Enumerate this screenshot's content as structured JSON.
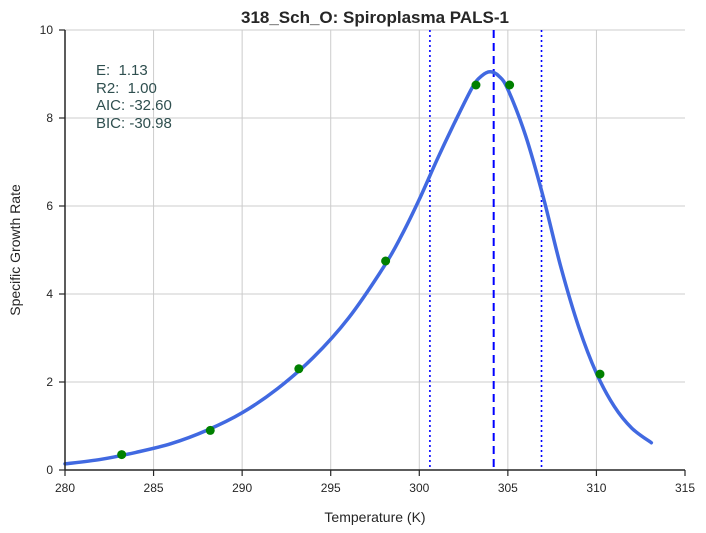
{
  "chart_data": {
    "type": "line",
    "title": "318_Sch_O: Spiroplasma PALS-1",
    "xlabel": "Temperature (K)",
    "ylabel": "Specific Growth Rate",
    "xlim": [
      280,
      315
    ],
    "ylim": [
      0,
      10
    ],
    "x_ticks": [
      280,
      285,
      290,
      295,
      300,
      305,
      310,
      315
    ],
    "y_ticks": [
      0,
      2,
      4,
      6,
      8,
      10
    ],
    "grid": true,
    "annotations": [
      "E:  1.13",
      "R2:  1.00",
      "AIC: -32.60",
      "BIC: -30.98"
    ],
    "colors": {
      "fit": "#4169e1",
      "points": "#008000",
      "peak_line": "#0000ff",
      "bound_lines": "#0000ff",
      "stats_text": "#2f4f4f"
    },
    "series": [
      {
        "style": "line",
        "x": [
          280,
          282,
          284,
          286,
          288,
          290,
          292,
          294,
          296,
          298,
          299,
          300,
          301,
          302,
          303,
          303.5,
          304,
          304.5,
          305,
          306,
          307,
          308,
          309,
          310,
          311,
          312,
          313.1
        ],
        "values": [
          0.14,
          0.24,
          0.4,
          0.6,
          0.9,
          1.3,
          1.85,
          2.55,
          3.45,
          4.62,
          5.33,
          6.15,
          7.05,
          7.9,
          8.7,
          8.95,
          9.05,
          8.95,
          8.65,
          7.6,
          6.2,
          4.6,
          3.25,
          2.2,
          1.45,
          0.95,
          0.62
        ]
      },
      {
        "style": "scatter",
        "x": [
          283.2,
          288.2,
          293.2,
          298.1,
          303.2,
          305.1,
          310.2
        ],
        "values": [
          0.35,
          0.9,
          2.3,
          4.75,
          8.75,
          8.75,
          2.18
        ]
      }
    ],
    "vertical_lines": [
      {
        "x": 304.2,
        "style": "dashed"
      },
      {
        "x": 300.6,
        "style": "dotted"
      },
      {
        "x": 306.9,
        "style": "dotted"
      }
    ]
  }
}
